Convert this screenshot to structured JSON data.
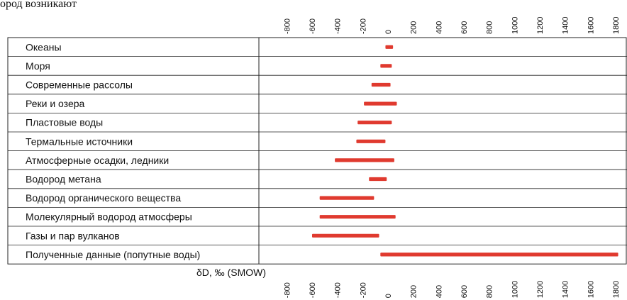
{
  "top_text": "ород возникают",
  "chart_data": {
    "type": "range-bar",
    "xlabel": "δD, ‰ (SMOW)",
    "ticks": [
      -800,
      -600,
      -400,
      -200,
      0,
      200,
      400,
      600,
      800,
      1000,
      1200,
      1400,
      1600,
      1800
    ],
    "xlim": [
      -800,
      1800
    ],
    "bar_color": "#e03a2f",
    "categories": [
      "Океаны",
      "Моря",
      "Современные рассолы",
      "Реки и озера",
      "Пластовые воды",
      "Термальные источники",
      "Атмосферные осадки, ледники",
      "Водород метана",
      "Водород органического вещества",
      "Молекулярный водород атмосферы",
      "Газы и пар вулканов",
      "Полученные данные (попутные воды)"
    ],
    "ranges": [
      [
        -20,
        40
      ],
      [
        -60,
        30
      ],
      [
        -130,
        20
      ],
      [
        -190,
        70
      ],
      [
        -240,
        30
      ],
      [
        -250,
        -20
      ],
      [
        -420,
        50
      ],
      [
        -150,
        -10
      ],
      [
        -540,
        -110
      ],
      [
        -540,
        60
      ],
      [
        -600,
        -70
      ],
      [
        -60,
        1820
      ]
    ]
  }
}
